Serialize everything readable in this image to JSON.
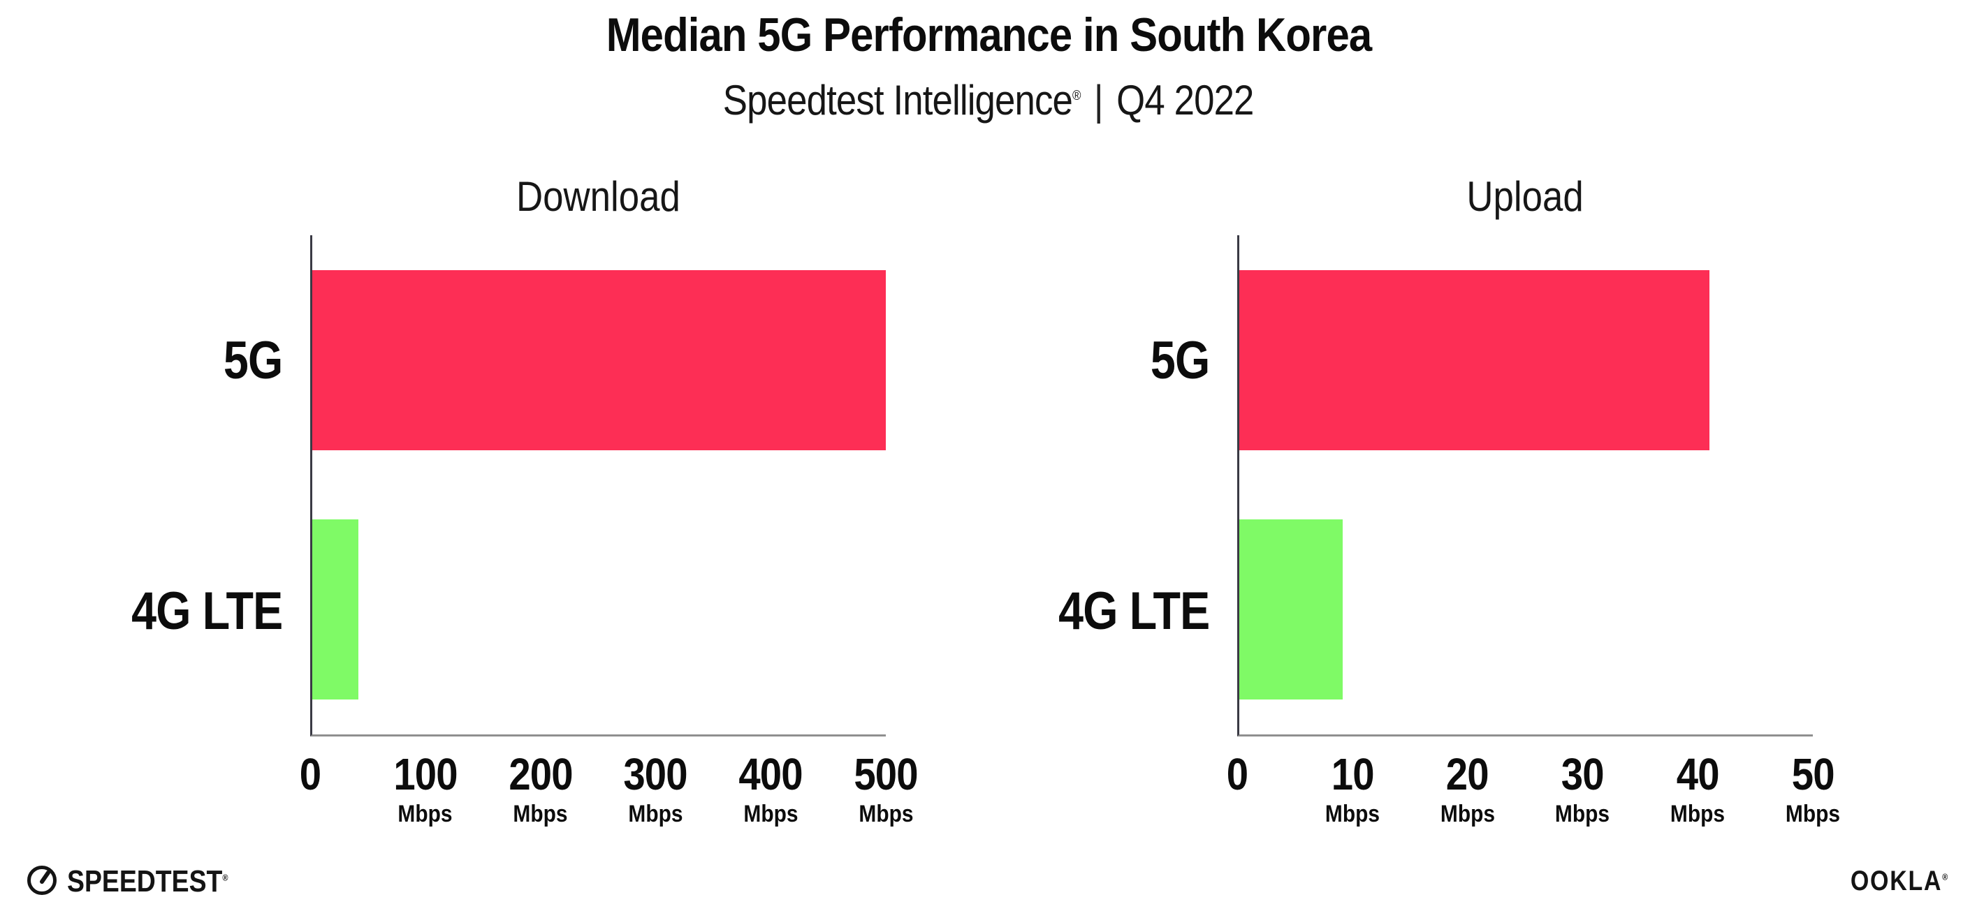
{
  "header": {
    "title": "Median 5G Performance in South Korea",
    "subtitle_brand": "Speedtest Intelligence",
    "registered_mark": "®",
    "separator": "|",
    "period": "Q4 2022"
  },
  "chart_data": [
    {
      "type": "bar",
      "orientation": "horizontal",
      "title": "Download",
      "categories": [
        "5G",
        "4G LTE"
      ],
      "values": [
        501,
        40
      ],
      "unit": "Mbps",
      "xlim": [
        0,
        500
      ],
      "ticks": [
        0,
        100,
        200,
        300,
        400,
        500
      ],
      "tick_unit_label": "Mbps",
      "bar_colors": [
        "#FD2E55",
        "#7FFA66"
      ],
      "grid": "dotted-vertical",
      "legend": "none"
    },
    {
      "type": "bar",
      "orientation": "horizontal",
      "title": "Upload",
      "categories": [
        "5G",
        "4G LTE"
      ],
      "values": [
        41,
        9
      ],
      "unit": "Mbps",
      "xlim": [
        0,
        50
      ],
      "ticks": [
        0,
        10,
        20,
        30,
        40,
        50
      ],
      "tick_unit_label": "Mbps",
      "bar_colors": [
        "#FD2E55",
        "#7FFA66"
      ],
      "grid": "dotted-vertical",
      "legend": "none"
    }
  ],
  "colors": {
    "bar_5g": "#FD2E55",
    "bar_4g_lte": "#7FFA66",
    "gridline": "#DEDEE8",
    "y_axis": "#3A3A44",
    "x_axis": "#8F8F8F",
    "background": "#FFFFFF",
    "text": "#0C0C0C"
  },
  "footer": {
    "speedtest_label": "SPEEDTEST",
    "speedtest_mark": "®",
    "ookla_label": "OOKLA",
    "ookla_mark": "®"
  }
}
